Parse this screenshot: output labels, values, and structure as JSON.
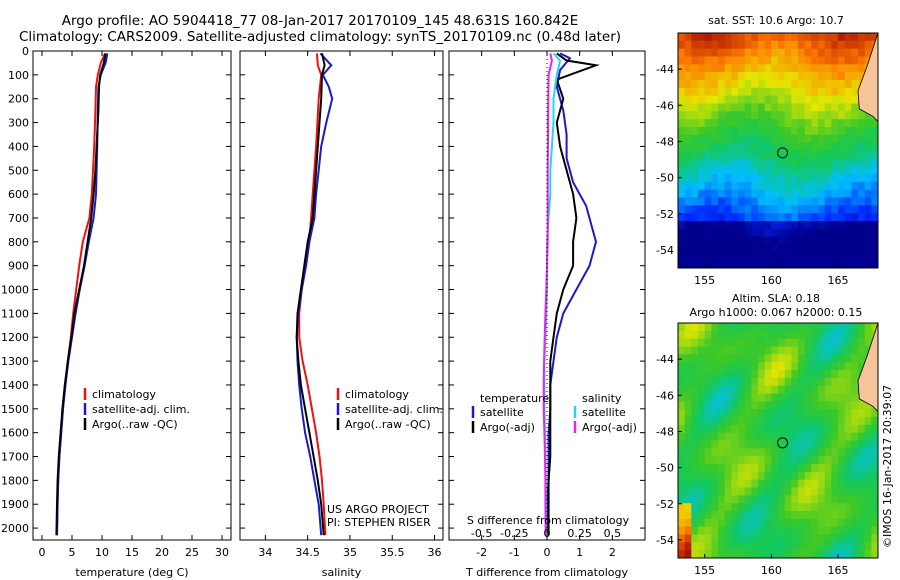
{
  "header": {
    "line1": "Argo profile: AO 5904418_77 08-Jan-2017 20170109_145 48.631S 160.842E",
    "line2": "Climatology: CARS2009. Satellite-adjusted climatology: synTS_20170109.nc (0.48d later)"
  },
  "colors": {
    "climatology": "#ee1111",
    "satellite": "#1a1acc",
    "argo": "#000000",
    "satellite_salinity": "#22d8ee",
    "argo_salinity": "#ee22ee",
    "land": "#f6c49a"
  },
  "chart_data": [
    {
      "type": "line",
      "name": "temperature-profile",
      "xlabel": "temperature (deg C)",
      "xlim": [
        -1.5,
        31.5
      ],
      "ylim": [
        0,
        2050
      ],
      "y_inverted": true,
      "xticks": [
        0,
        5,
        10,
        15,
        20,
        25,
        30
      ],
      "yticks": [
        0,
        100,
        200,
        300,
        400,
        500,
        600,
        700,
        800,
        900,
        1000,
        1100,
        1200,
        1300,
        1400,
        1500,
        1600,
        1700,
        1800,
        1900,
        2000
      ],
      "legend": [
        "climatology",
        "satellite-adj. clim.",
        "Argo(..raw -QC)"
      ],
      "series": [
        {
          "name": "climatology",
          "color_key": "climatology",
          "points": [
            [
              10.5,
              10
            ],
            [
              9.8,
              50
            ],
            [
              9.3,
              100
            ],
            [
              9.0,
              150
            ],
            [
              8.9,
              250
            ],
            [
              8.7,
              400
            ],
            [
              8.5,
              500
            ],
            [
              8.3,
              600
            ],
            [
              7.9,
              700
            ],
            [
              6.8,
              800
            ],
            [
              6.2,
              900
            ],
            [
              5.7,
              1000
            ],
            [
              5.2,
              1100
            ],
            [
              4.8,
              1200
            ],
            [
              4.3,
              1300
            ],
            [
              3.9,
              1400
            ],
            [
              3.5,
              1500
            ],
            [
              3.2,
              1600
            ],
            [
              2.9,
              1700
            ],
            [
              2.7,
              1800
            ],
            [
              2.6,
              1900
            ],
            [
              2.5,
              2030
            ]
          ]
        },
        {
          "name": "satellite-adj. clim.",
          "color_key": "satellite",
          "points": [
            [
              10.9,
              10
            ],
            [
              10.6,
              50
            ],
            [
              9.8,
              100
            ],
            [
              9.4,
              150
            ],
            [
              9.3,
              250
            ],
            [
              9.2,
              400
            ],
            [
              9.1,
              500
            ],
            [
              9.0,
              600
            ],
            [
              8.6,
              700
            ],
            [
              7.8,
              800
            ],
            [
              7.1,
              900
            ],
            [
              6.3,
              1000
            ],
            [
              5.6,
              1100
            ],
            [
              5.0,
              1200
            ],
            [
              4.4,
              1300
            ],
            [
              3.9,
              1400
            ],
            [
              3.5,
              1500
            ],
            [
              3.2,
              1600
            ],
            [
              2.9,
              1700
            ],
            [
              2.7,
              1800
            ],
            [
              2.6,
              1900
            ],
            [
              2.5,
              2030
            ]
          ]
        },
        {
          "name": "Argo(..raw -QC)",
          "color_key": "argo",
          "points": [
            [
              10.6,
              10
            ],
            [
              10.3,
              50
            ],
            [
              9.7,
              100
            ],
            [
              9.5,
              150
            ],
            [
              9.4,
              250
            ],
            [
              9.1,
              400
            ],
            [
              8.9,
              500
            ],
            [
              8.6,
              600
            ],
            [
              8.2,
              700
            ],
            [
              7.6,
              800
            ],
            [
              7.0,
              900
            ],
            [
              6.2,
              1000
            ],
            [
              5.4,
              1100
            ],
            [
              4.9,
              1200
            ],
            [
              4.3,
              1300
            ],
            [
              3.8,
              1400
            ],
            [
              3.4,
              1500
            ],
            [
              3.1,
              1600
            ],
            [
              2.8,
              1700
            ],
            [
              2.6,
              1800
            ],
            [
              2.5,
              1900
            ],
            [
              2.4,
              2030
            ]
          ]
        }
      ]
    },
    {
      "type": "line",
      "name": "salinity-profile",
      "xlabel": "salinity",
      "xlim": [
        33.7,
        36.1
      ],
      "ylim": [
        0,
        2050
      ],
      "y_inverted": true,
      "xticks": [
        34,
        34.5,
        35,
        35.5,
        36
      ],
      "legend": [
        "climatology",
        "satellite-adj. clim.",
        "Argo(..raw -QC)"
      ],
      "annotation": [
        "US ARGO PROJECT",
        "PI: STEPHEN RISER"
      ],
      "series": [
        {
          "name": "climatology",
          "color_key": "climatology",
          "points": [
            [
              34.61,
              10
            ],
            [
              34.62,
              60
            ],
            [
              34.66,
              100
            ],
            [
              34.63,
              200
            ],
            [
              34.6,
              400
            ],
            [
              34.56,
              600
            ],
            [
              34.52,
              800
            ],
            [
              34.48,
              900
            ],
            [
              34.43,
              1000
            ],
            [
              34.4,
              1100
            ],
            [
              34.4,
              1200
            ],
            [
              34.44,
              1300
            ],
            [
              34.5,
              1400
            ],
            [
              34.55,
              1500
            ],
            [
              34.6,
              1600
            ],
            [
              34.64,
              1700
            ],
            [
              34.67,
              1800
            ],
            [
              34.69,
              1900
            ],
            [
              34.71,
              2030
            ]
          ]
        },
        {
          "name": "satellite-adj. clim.",
          "color_key": "satellite",
          "points": [
            [
              34.65,
              10
            ],
            [
              34.78,
              60
            ],
            [
              34.68,
              100
            ],
            [
              34.75,
              150
            ],
            [
              34.79,
              200
            ],
            [
              34.72,
              300
            ],
            [
              34.66,
              400
            ],
            [
              34.63,
              500
            ],
            [
              34.6,
              600
            ],
            [
              34.58,
              700
            ],
            [
              34.52,
              800
            ],
            [
              34.48,
              900
            ],
            [
              34.43,
              1000
            ],
            [
              34.39,
              1100
            ],
            [
              34.37,
              1200
            ],
            [
              34.38,
              1300
            ],
            [
              34.4,
              1400
            ],
            [
              34.43,
              1500
            ],
            [
              34.47,
              1600
            ],
            [
              34.53,
              1700
            ],
            [
              34.58,
              1800
            ],
            [
              34.63,
              1900
            ],
            [
              34.66,
              2030
            ]
          ]
        },
        {
          "name": "Argo(..raw -QC)",
          "color_key": "argo",
          "points": [
            [
              34.67,
              10
            ],
            [
              34.7,
              60
            ],
            [
              34.67,
              100
            ],
            [
              34.66,
              200
            ],
            [
              34.64,
              300
            ],
            [
              34.62,
              400
            ],
            [
              34.6,
              500
            ],
            [
              34.58,
              600
            ],
            [
              34.56,
              700
            ],
            [
              34.5,
              800
            ],
            [
              34.46,
              900
            ],
            [
              34.42,
              1000
            ],
            [
              34.38,
              1100
            ],
            [
              34.37,
              1200
            ],
            [
              34.39,
              1300
            ],
            [
              34.42,
              1400
            ],
            [
              34.47,
              1500
            ],
            [
              34.52,
              1600
            ],
            [
              34.57,
              1700
            ],
            [
              34.62,
              1800
            ],
            [
              34.66,
              1900
            ],
            [
              34.69,
              2030
            ]
          ]
        }
      ]
    },
    {
      "type": "line",
      "name": "difference-profile",
      "xlabel": "T difference from climatology",
      "xlabel2": "S difference from climatology",
      "xlim": [
        -3,
        3
      ],
      "ylim": [
        0,
        2050
      ],
      "y_inverted": true,
      "xticks": [
        -2,
        -1,
        0,
        1,
        2
      ],
      "s_ticks": [
        {
          "value": -0.5,
          "label": "-0.5"
        },
        {
          "value": -0.25,
          "label": "-0.25"
        },
        {
          "value": 0,
          "label": "0"
        },
        {
          "value": 0.25,
          "label": "0.25"
        },
        {
          "value": 0.5,
          "label": "0.5"
        }
      ],
      "legend_temperature": {
        "heading": "temperature",
        "items": [
          "satellite",
          "Argo(-adj)"
        ]
      },
      "legend_salinity": {
        "heading": "salinity",
        "items": [
          "satellite",
          "Argo(-adj)"
        ]
      },
      "series": [
        {
          "name": "temperature satellite",
          "color_key": "satellite",
          "points": [
            [
              0.4,
              10
            ],
            [
              0.7,
              30
            ],
            [
              0.4,
              80
            ],
            [
              0.3,
              150
            ],
            [
              0.5,
              250
            ],
            [
              0.6,
              350
            ],
            [
              0.6,
              450
            ],
            [
              0.8,
              550
            ],
            [
              1.2,
              650
            ],
            [
              1.4,
              750
            ],
            [
              1.5,
              800
            ],
            [
              1.3,
              900
            ],
            [
              0.9,
              1000
            ],
            [
              0.5,
              1100
            ],
            [
              0.3,
              1200
            ],
            [
              0.2,
              1300
            ],
            [
              0.1,
              1400
            ],
            [
              0.1,
              1500
            ],
            [
              0.05,
              1600
            ],
            [
              0.05,
              1700
            ],
            [
              0.05,
              1800
            ],
            [
              0.0,
              1900
            ],
            [
              0.0,
              2030
            ]
          ]
        },
        {
          "name": "temperature Argo(-adj)",
          "color_key": "argo",
          "points": [
            [
              0.3,
              10
            ],
            [
              0.6,
              40
            ],
            [
              1.5,
              60
            ],
            [
              0.3,
              120
            ],
            [
              0.5,
              200
            ],
            [
              0.3,
              300
            ],
            [
              0.4,
              400
            ],
            [
              0.6,
              500
            ],
            [
              0.8,
              600
            ],
            [
              0.9,
              700
            ],
            [
              0.8,
              800
            ],
            [
              0.8,
              900
            ],
            [
              0.5,
              1000
            ],
            [
              0.3,
              1100
            ],
            [
              0.2,
              1200
            ],
            [
              0.1,
              1300
            ],
            [
              0.1,
              1400
            ],
            [
              0.1,
              1500
            ],
            [
              0.1,
              1600
            ],
            [
              0.1,
              1700
            ],
            [
              0.05,
              1800
            ],
            [
              0.05,
              1900
            ],
            [
              0.05,
              2030
            ]
          ]
        },
        {
          "name": "salinity satellite",
          "color_key": "satellite_salinity",
          "points": [
            [
              0.2,
              10
            ],
            [
              0.4,
              40
            ],
            [
              0.3,
              100
            ],
            [
              0.2,
              200
            ],
            [
              0.2,
              300
            ],
            [
              0.15,
              400
            ],
            [
              0.1,
              500
            ],
            [
              0.1,
              600
            ],
            [
              0.05,
              700
            ],
            [
              0.0,
              800
            ],
            [
              0.0,
              900
            ],
            [
              0.0,
              1000
            ],
            [
              -0.02,
              1100
            ],
            [
              -0.05,
              1200
            ],
            [
              -0.08,
              1300
            ],
            [
              -0.08,
              1400
            ],
            [
              -0.08,
              1500
            ],
            [
              -0.06,
              1600
            ],
            [
              -0.05,
              1700
            ],
            [
              -0.04,
              1800
            ],
            [
              -0.03,
              1900
            ],
            [
              -0.02,
              2030
            ]
          ]
        },
        {
          "name": "salinity Argo(-adj)",
          "color_key": "argo_salinity",
          "points": [
            [
              0.1,
              10
            ],
            [
              0.15,
              40
            ],
            [
              0.05,
              100
            ],
            [
              0.04,
              200
            ],
            [
              0.03,
              300
            ],
            [
              0.03,
              400
            ],
            [
              0.02,
              500
            ],
            [
              0.02,
              600
            ],
            [
              0.02,
              700
            ],
            [
              0.02,
              800
            ],
            [
              0.0,
              900
            ],
            [
              -0.02,
              1000
            ],
            [
              -0.05,
              1100
            ],
            [
              -0.07,
              1200
            ],
            [
              -0.09,
              1300
            ],
            [
              -0.1,
              1400
            ],
            [
              -0.1,
              1500
            ],
            [
              -0.08,
              1600
            ],
            [
              -0.06,
              1700
            ],
            [
              -0.05,
              1800
            ],
            [
              -0.05,
              1900
            ],
            [
              -0.04,
              2030
            ]
          ]
        }
      ]
    },
    {
      "type": "heatmap",
      "name": "sst-map",
      "title": "sat. SST: 10.6  Argo: 10.7",
      "xlim": [
        153,
        168
      ],
      "ylim": [
        -55,
        -42
      ],
      "xticks": [
        155,
        160,
        165
      ],
      "yticks": [
        -44,
        -46,
        -48,
        -50,
        -52,
        -54
      ],
      "marker": {
        "lon": 160.842,
        "lat": -48.631
      }
    },
    {
      "type": "heatmap",
      "name": "sla-map",
      "title": "Altim. SLA: 0.18",
      "subtitle": "Argo h1000: 0.067  h2000: 0.15",
      "xlim": [
        153,
        168
      ],
      "ylim": [
        -55,
        -42
      ],
      "xticks": [
        155,
        160,
        165
      ],
      "yticks": [
        -44,
        -46,
        -48,
        -50,
        -52,
        -54
      ],
      "marker": {
        "lon": 160.842,
        "lat": -48.631
      }
    }
  ],
  "footer": {
    "credit": "©IMOS 16-Jan-2017 20:39:07"
  }
}
